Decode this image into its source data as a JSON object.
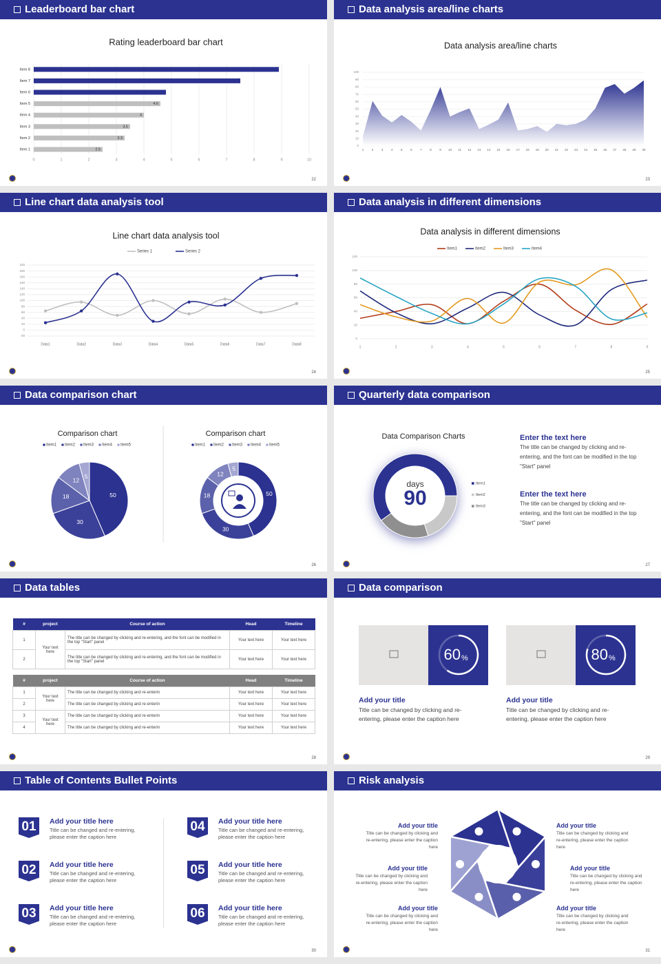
{
  "slides": [
    {
      "title": "Leaderboard bar chart",
      "page": "22"
    },
    {
      "title": "Data analysis area/line charts",
      "page": "23"
    },
    {
      "title": "Line chart data analysis tool",
      "page": "24"
    },
    {
      "title": "Data analysis in different dimensions",
      "page": "25"
    },
    {
      "title": "Data comparison chart",
      "page": "26"
    },
    {
      "title": "Quarterly data comparison",
      "page": "27"
    },
    {
      "title": "Data tables",
      "page": "28"
    },
    {
      "title": "Data comparison",
      "page": "29"
    },
    {
      "title": "Table of Contents Bullet Points",
      "page": "30"
    },
    {
      "title": "Risk analysis",
      "page": "31"
    }
  ],
  "chart_data": [
    {
      "type": "hbar",
      "title": "Rating leaderboard bar chart",
      "categories": [
        "Item 1",
        "Item 2",
        "Item 3",
        "Item 4",
        "Item 5",
        "Item 6",
        "Item 7",
        "Item 8"
      ],
      "values": [
        2.5,
        3.3,
        3.5,
        4,
        4.6,
        4.8,
        7.5,
        8.9
      ],
      "value_labels": [
        "2.5",
        "3.3",
        "3.5",
        "4",
        "4.6",
        null,
        null,
        null
      ],
      "colors": [
        "#bfbfbf",
        "#bfbfbf",
        "#bfbfbf",
        "#bfbfbf",
        "#bfbfbf",
        "#2b3290",
        "#2b3290",
        "#2b3290"
      ],
      "xlim": [
        0,
        10
      ],
      "xticks": [
        0,
        1,
        2,
        3,
        4,
        5,
        6,
        7,
        8,
        9,
        10
      ],
      "grid": true
    },
    {
      "type": "area",
      "title": "Data analysis area/line charts",
      "categories": [
        1,
        2,
        3,
        4,
        5,
        6,
        7,
        8,
        9,
        10,
        11,
        12,
        13,
        14,
        15,
        16,
        17,
        18,
        19,
        20,
        21,
        22,
        23,
        24,
        25,
        26,
        27,
        28,
        29,
        30
      ],
      "values": [
        13,
        61,
        41,
        32,
        42,
        33,
        21,
        49,
        80,
        40,
        46,
        51,
        23,
        29,
        36,
        59,
        21,
        23,
        27,
        19,
        30,
        28,
        30,
        36,
        51,
        79,
        84,
        71,
        79,
        89
      ],
      "color": "#2b3290",
      "ylim": [
        0,
        100
      ],
      "yticks": [
        0,
        10,
        20,
        30,
        40,
        50,
        60,
        70,
        80,
        90,
        100
      ],
      "grid": true
    },
    {
      "type": "line",
      "title": "Line chart data analysis tool",
      "categories": [
        "Data1",
        "Data2",
        "Data3",
        "Data4",
        "Data5",
        "Data6",
        "Data7",
        "Data8"
      ],
      "series": [
        {
          "name": "Series 1",
          "color": "#bfbfbf",
          "values": [
            65,
            95,
            50,
            100,
            55,
            105,
            60,
            90
          ]
        },
        {
          "name": "Series 2",
          "color": "#2b3290",
          "values": [
            25,
            65,
            190,
            30,
            95,
            85,
            175,
            185
          ]
        }
      ],
      "ylim": [
        -20,
        220
      ],
      "yticks": [
        -20,
        0,
        20,
        40,
        60,
        80,
        100,
        120,
        140,
        160,
        180,
        200,
        220
      ],
      "grid": true,
      "smooth": true,
      "markers": true,
      "legend": "top"
    },
    {
      "type": "line",
      "title": "Data analysis in different dimensions",
      "x": [
        1,
        2,
        3,
        4,
        5,
        6,
        7,
        8,
        9
      ],
      "xlim": [
        1,
        9
      ],
      "xticks": [
        1,
        2,
        3,
        4,
        5,
        6,
        7,
        8,
        9
      ],
      "series": [
        {
          "name": "Item1",
          "color": "#b33a17",
          "values": [
            30,
            40,
            50,
            22,
            55,
            80,
            42,
            21,
            51
          ]
        },
        {
          "name": "Item2",
          "color": "#1f2a7a",
          "values": [
            70,
            38,
            22,
            45,
            68,
            35,
            20,
            72,
            86
          ]
        },
        {
          "name": "Item3",
          "color": "#e39a1f",
          "values": [
            50,
            32,
            26,
            59,
            23,
            83,
            79,
            101,
            31
          ]
        },
        {
          "name": "Item4",
          "color": "#27a4c4",
          "values": [
            89,
            62,
            37,
            22,
            51,
            88,
            77,
            29,
            38
          ]
        }
      ],
      "ylim": [
        0,
        120
      ],
      "yticks": [
        0,
        20,
        40,
        60,
        80,
        100,
        120
      ],
      "grid": true,
      "smooth": true,
      "markers": false,
      "legend": "top"
    },
    {
      "type": "pie",
      "title": "Comparison chart",
      "categories": [
        "Item1",
        "Item2",
        "Item3",
        "Item4",
        "Item5"
      ],
      "values": [
        50,
        30,
        18,
        12,
        5
      ],
      "colors": [
        "#2b3290",
        "#3b4199",
        "#5c61ab",
        "#7f83be",
        "#a4a7d2"
      ],
      "legend": "top"
    },
    {
      "type": "donut",
      "title": "Comparison chart",
      "categories": [
        "Item1",
        "Item2",
        "Item3",
        "Item4",
        "Item5"
      ],
      "values": [
        50,
        30,
        18,
        12,
        5
      ],
      "colors": [
        "#2b3290",
        "#3b4199",
        "#5c61ab",
        "#7f83be",
        "#a4a7d2"
      ],
      "legend": "top"
    },
    {
      "type": "donut",
      "title": "Data Comparison Charts",
      "categories": [
        "Item1",
        "Item2",
        "Item3"
      ],
      "values": [
        60,
        20,
        20
      ],
      "colors": [
        "#2b3290",
        "#c8c8c8",
        "#8f8f8f"
      ],
      "center_label": "days",
      "center_value": "90",
      "legend": "right"
    },
    {
      "type": "progress",
      "value": 60,
      "unit": "%"
    },
    {
      "type": "progress",
      "value": 80,
      "unit": "%"
    }
  ],
  "quarterly": [
    {
      "heading": "Enter the text here",
      "text": "The title can be changed by clicking and re-entering, and the font can be modified in the top \"Start\" panel"
    },
    {
      "heading": "Enter the text here",
      "text": "The title can be changed by clicking and re-entering, and the font can be modified in the top \"Start\" panel"
    }
  ],
  "tables": [
    {
      "header": [
        "#",
        "project",
        "Course of action",
        "Head",
        "Timeline"
      ],
      "groups": [
        {
          "project": "Your text here",
          "rows": [
            [
              "1",
              "The title can be changed by clicking and re-entering, and the font can be modified in the top \"Start\" panel",
              "Your text here",
              "Your text here"
            ],
            [
              "2",
              "The title can be changed by clicking and re-entering, and the font can be modified in the top \"Start\" panel",
              "Your text here",
              "Your text here"
            ]
          ]
        }
      ]
    },
    {
      "header": [
        "#",
        "project",
        "Course of action",
        "Head",
        "Timeline"
      ],
      "groups": [
        {
          "project": "Your text here",
          "rows": [
            [
              "1",
              "The title can be changed by clicking and re-enterin",
              "Your text here",
              "Your text here"
            ],
            [
              "2",
              "The title can be changed by clicking and re-enterin",
              "Your text here",
              "Your text here"
            ]
          ]
        },
        {
          "project": "Your text here",
          "rows": [
            [
              "3",
              "The title can be changed by clicking and re-enterin",
              "Your text here",
              "Your text here"
            ],
            [
              "4",
              "The title can be changed by clicking and re-enterin",
              "Your text here",
              "Your text here"
            ]
          ]
        }
      ]
    }
  ],
  "comparison": [
    {
      "title": "Add your title",
      "text": "Title can be changed by clicking and re-entering, please enter the caption here"
    },
    {
      "title": "Add your title",
      "text": "Title can be changed by clicking and re-entering, please enter the caption here"
    }
  ],
  "toc": [
    {
      "number": "01",
      "title": "Add your title here",
      "text": "Title can be changed and re-entering, please enter the caption here"
    },
    {
      "number": "02",
      "title": "Add your title here",
      "text": "Title can be changed and re-entering, please enter the caption here"
    },
    {
      "number": "03",
      "title": "Add your title here",
      "text": "Title can be changed and re-entering, please enter the caption here"
    },
    {
      "number": "04",
      "title": "Add your title here",
      "text": "Title can be changed and re-entering, please enter the caption here"
    },
    {
      "number": "05",
      "title": "Add your title here",
      "text": "Title can be changed and re-entering, please enter the caption here"
    },
    {
      "number": "06",
      "title": "Add your title here",
      "text": "Title can be changed and re-entering, please enter the caption here"
    }
  ],
  "risk": [
    {
      "title": "Add your title",
      "text": "Title can be changed by clicking and re-entering, please enter the caption here"
    },
    {
      "title": "Add your title",
      "text": "Title can be changed by clicking and re-entering, please enter the caption here"
    },
    {
      "title": "Add your title",
      "text": "Title can be changed by clicking and re-entering, please enter the caption here"
    },
    {
      "title": "Add your title",
      "text": "Title can be changed by clicking and re-entering, please enter the caption here"
    },
    {
      "title": "Add your title",
      "text": "Title can be changed by clicking and re-entering, please enter the caption here"
    },
    {
      "title": "Add your title",
      "text": "Title can be changed by clicking and re-entering, please enter the caption here"
    }
  ]
}
